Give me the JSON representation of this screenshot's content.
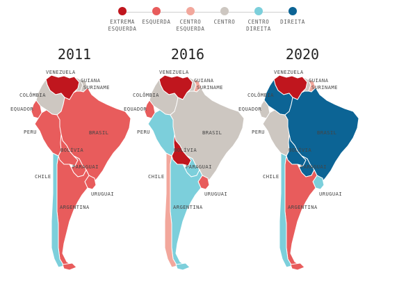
{
  "legend": [
    {
      "label": "EXTREMA\nESQUERDA",
      "color": "#c0161e"
    },
    {
      "label": "ESQUERDA",
      "color": "#e85c5c"
    },
    {
      "label": "CENTRO\nESQUERDA",
      "color": "#f2a79c"
    },
    {
      "label": "CENTRO",
      "color": "#cdc7c1"
    },
    {
      "label": "CENTRO\nDIREITA",
      "color": "#7ccfdb"
    },
    {
      "label": "DIREITA",
      "color": "#0c6495"
    }
  ],
  "maps": [
    {
      "year": "2011",
      "colors": {
        "venezuela": "#c0161e",
        "guiana": "#cdc7c1",
        "suriname": "#cdc7c1",
        "colombia": "#cdc7c1",
        "equador": "#e85c5c",
        "peru": "#e85c5c",
        "brasil": "#e85c5c",
        "bolivia": "#e85c5c",
        "paraguai": "#e85c5c",
        "chile": "#7ccfdb",
        "argentina": "#e85c5c",
        "uruguai": "#e85c5c"
      }
    },
    {
      "year": "2016",
      "colors": {
        "venezuela": "#c0161e",
        "guiana": "#cdc7c1",
        "suriname": "#f2a79c",
        "colombia": "#cdc7c1",
        "equador": "#e85c5c",
        "peru": "#7ccfdb",
        "brasil": "#cdc7c1",
        "bolivia": "#c0161e",
        "paraguai": "#7ccfdb",
        "chile": "#f2a79c",
        "argentina": "#7ccfdb",
        "uruguai": "#e85c5c"
      }
    },
    {
      "year": "2020",
      "colors": {
        "venezuela": "#c0161e",
        "guiana": "#cdc7c1",
        "suriname": "#f2a79c",
        "colombia": "#0c6495",
        "equador": "#cdc7c1",
        "peru": "#cdc7c1",
        "brasil": "#0c6495",
        "bolivia": "#0c6495",
        "paraguai": "#0c6495",
        "chile": "#7ccfdb",
        "argentina": "#e85c5c",
        "uruguai": "#7ccfdb"
      }
    }
  ],
  "labels": {
    "venezuela": "VENEZUELA",
    "guiana": "GUIANA",
    "suriname": "SURINAME",
    "colombia": "COLÔMBIA",
    "equador": "EQUADOR",
    "peru": "PERU",
    "brasil": "BRASIL",
    "bolivia": "BOLÍVIA",
    "paraguai": "PARAGUAI",
    "chile": "CHILE",
    "argentina": "ARGENTINA",
    "uruguai": "URUGUAI"
  }
}
